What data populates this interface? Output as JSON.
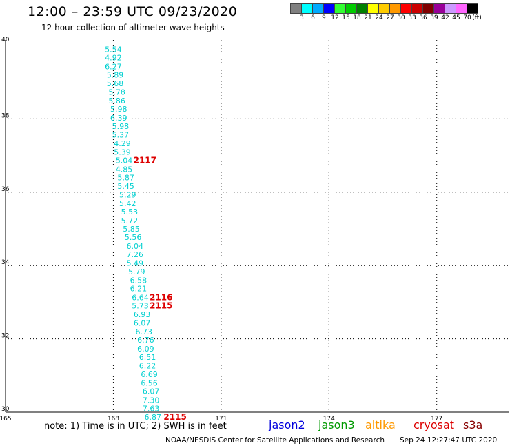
{
  "title": "12:00 – 23:59 UTC 09/23/2020",
  "subtitle": "12 hour collection of altimeter wave heights",
  "colorbar": {
    "colors": [
      "#808080",
      "#00ffff",
      "#00aaff",
      "#0000ff",
      "#33ff33",
      "#00cc00",
      "#008000",
      "#ffff00",
      "#ffcc00",
      "#ff9900",
      "#ff0000",
      "#cc0000",
      "#800000",
      "#990099",
      "#cc99ff",
      "#ff66ff",
      "#000000"
    ],
    "labels": [
      "3",
      "6",
      "9",
      "12",
      "15",
      "18",
      "21",
      "24",
      "27",
      "30",
      "33",
      "36",
      "39",
      "42",
      "45",
      "70"
    ],
    "unit": "(ft)"
  },
  "chart_data": {
    "type": "scatter",
    "title": "12:00 – 23:59 UTC 09/23/2020",
    "subtitle": "12 hour collection of altimeter wave heights",
    "xlim": [
      165,
      179
    ],
    "ylim": [
      30,
      40
    ],
    "x_ticks": [
      "165",
      "168",
      "171",
      "174",
      "177"
    ],
    "y_ticks": [
      "40",
      "38",
      "36",
      "34",
      "32",
      "30"
    ],
    "grid": true,
    "series": [
      {
        "name": "jason2",
        "color": "#00d0d0",
        "points": [
          {
            "lon": 168.0,
            "lat": 39.9,
            "label": "5.54"
          },
          {
            "lon": 168.0,
            "lat": 39.67,
            "label": "4.92"
          },
          {
            "lon": 168.0,
            "lat": 39.43,
            "label": "6.27"
          },
          {
            "lon": 168.05,
            "lat": 39.2,
            "label": "5.89"
          },
          {
            "lon": 168.05,
            "lat": 38.97,
            "label": "5.68"
          },
          {
            "lon": 168.1,
            "lat": 38.73,
            "label": "5.78"
          },
          {
            "lon": 168.1,
            "lat": 38.5,
            "label": "5.86"
          },
          {
            "lon": 168.15,
            "lat": 38.27,
            "label": "5.98"
          },
          {
            "lon": 168.15,
            "lat": 38.03,
            "label": "6.39"
          },
          {
            "lon": 168.2,
            "lat": 37.8,
            "label": "5.98"
          },
          {
            "lon": 168.2,
            "lat": 37.57,
            "label": "5.37"
          },
          {
            "lon": 168.25,
            "lat": 37.33,
            "label": "4.29"
          },
          {
            "lon": 168.25,
            "lat": 37.1,
            "label": "5.39"
          },
          {
            "lon": 168.3,
            "lat": 36.87,
            "label": "5.04"
          },
          {
            "lon": 168.3,
            "lat": 36.63,
            "label": "4.85"
          },
          {
            "lon": 168.35,
            "lat": 36.4,
            "label": "5.87"
          },
          {
            "lon": 168.35,
            "lat": 36.17,
            "label": "5.45"
          },
          {
            "lon": 168.4,
            "lat": 35.93,
            "label": "5.29"
          },
          {
            "lon": 168.4,
            "lat": 35.7,
            "label": "5.42"
          },
          {
            "lon": 168.45,
            "lat": 35.47,
            "label": "5.53"
          },
          {
            "lon": 168.45,
            "lat": 35.23,
            "label": "5.72"
          },
          {
            "lon": 168.5,
            "lat": 35.0,
            "label": "5.85"
          },
          {
            "lon": 168.55,
            "lat": 34.77,
            "label": "5.56"
          },
          {
            "lon": 168.6,
            "lat": 34.53,
            "label": "6.04"
          },
          {
            "lon": 168.6,
            "lat": 34.3,
            "label": "7.26"
          },
          {
            "lon": 168.6,
            "lat": 34.07,
            "label": "5.49"
          },
          {
            "lon": 168.65,
            "lat": 33.83,
            "label": "5.79"
          },
          {
            "lon": 168.7,
            "lat": 33.6,
            "label": "6.58"
          },
          {
            "lon": 168.7,
            "lat": 33.37,
            "label": "6.21"
          },
          {
            "lon": 168.75,
            "lat": 33.13,
            "label": "6.64"
          },
          {
            "lon": 168.75,
            "lat": 32.9,
            "label": "5.73"
          },
          {
            "lon": 168.8,
            "lat": 32.67,
            "label": "6.93"
          },
          {
            "lon": 168.8,
            "lat": 32.43,
            "label": "6.07"
          },
          {
            "lon": 168.85,
            "lat": 32.2,
            "label": "6.73"
          },
          {
            "lon": 168.9,
            "lat": 31.97,
            "label": "6.76"
          },
          {
            "lon": 168.9,
            "lat": 31.73,
            "label": "6.09"
          },
          {
            "lon": 168.95,
            "lat": 31.5,
            "label": "6.51"
          },
          {
            "lon": 168.95,
            "lat": 31.27,
            "label": "6.22"
          },
          {
            "lon": 169.0,
            "lat": 31.03,
            "label": "6.69"
          },
          {
            "lon": 169.0,
            "lat": 30.8,
            "label": "6.56"
          },
          {
            "lon": 169.05,
            "lat": 30.57,
            "label": "6.07"
          },
          {
            "lon": 169.05,
            "lat": 30.33,
            "label": "7.30"
          },
          {
            "lon": 169.05,
            "lat": 30.1,
            "label": "7.63"
          },
          {
            "lon": 169.1,
            "lat": 29.87,
            "label": "6.87"
          }
        ]
      },
      {
        "name": "time",
        "color": "#dd0000",
        "points": [
          {
            "lon": 168.88,
            "lat": 36.87,
            "label": "2117"
          },
          {
            "lon": 169.33,
            "lat": 33.13,
            "label": "2116"
          },
          {
            "lon": 169.33,
            "lat": 32.9,
            "label": "2115"
          },
          {
            "lon": 169.72,
            "lat": 29.87,
            "label": "2115"
          }
        ]
      }
    ]
  },
  "note": "note:  1) Time is in UTC;  2) SWH is in feet",
  "missions": [
    {
      "label": "jason2",
      "color": "#0000dd"
    },
    {
      "label": "jason3",
      "color": "#009900"
    },
    {
      "label": "altika",
      "color": "#ff9900"
    },
    {
      "label": "cryosat",
      "color": "#dd0000"
    },
    {
      "label": "s3a",
      "color": "#880000"
    }
  ],
  "footer": "NOAA/NESDIS Center for Satellite Applications and Research",
  "footer_time": "Sep 24 12:27:47 UTC 2020"
}
